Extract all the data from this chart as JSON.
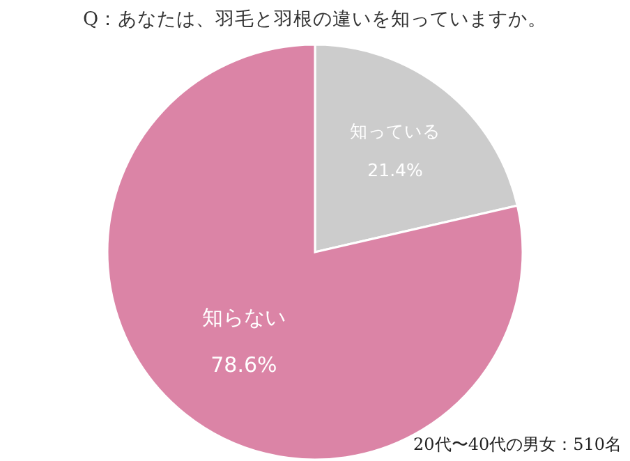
{
  "chart_data": {
    "type": "pie",
    "title": "Q：あなたは、羽毛と羽根の違いを知っていますか。",
    "categories": [
      "知っている",
      "知らない"
    ],
    "values": [
      21.4,
      78.6
    ],
    "value_labels": [
      "21.4%",
      "78.6%"
    ],
    "colors": [
      "#cccccc",
      "#db84a6"
    ],
    "annotations": [
      "20代〜40代の男女：510名"
    ]
  }
}
